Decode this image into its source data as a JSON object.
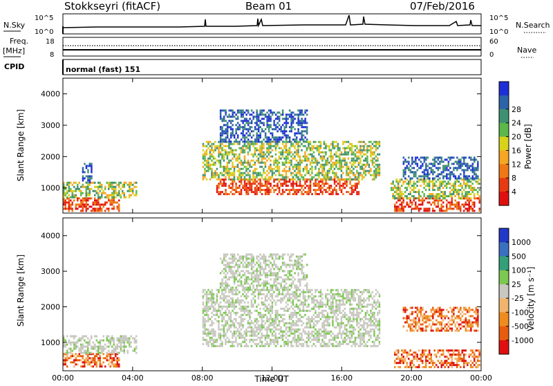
{
  "header": {
    "station": "Stokkseyri (fitACF)",
    "beam": "Beam 01",
    "date": "07/Feb/2016"
  },
  "left_labels": {
    "nsky": "N.Sky",
    "freq": "Freq.",
    "freq_unit": "[MHz]",
    "cpid": "CPID"
  },
  "right_labels": {
    "nsearch": "N.Search",
    "nave": "Nave"
  },
  "noise_panel": {
    "left_ticks": [
      "10^5",
      "10^0"
    ],
    "right_ticks": [
      "10^5",
      "10^0"
    ]
  },
  "freq_panel": {
    "left_ticks": [
      "18",
      "8"
    ],
    "right_ticks": [
      "60",
      "0"
    ]
  },
  "cpid_text": "normal (fast) 151",
  "chart_data": [
    {
      "type": "heatmap",
      "name": "power",
      "ylabel": "Slant Range [km]",
      "y_ticks": [
        "1000",
        "2000",
        "3000",
        "4000"
      ],
      "x_ticks": [
        "00:00",
        "04:00",
        "08:00",
        "12:00",
        "16:00",
        "20:00",
        "00:00"
      ],
      "colorbar": {
        "label": "Power [dB]",
        "ticks": [
          "4",
          "8",
          "12",
          "16",
          "20",
          "24",
          "28"
        ],
        "colors": [
          "#1f2fd8",
          "#2d63a8",
          "#3f8f73",
          "#5cb848",
          "#d8d21a",
          "#f6a623",
          "#f07814",
          "#e83a12",
          "#e01010"
        ]
      },
      "echo_regions": [
        {
          "t0": 0.0,
          "t1": 3.2,
          "r0": 300,
          "r1": 700,
          "level": "high"
        },
        {
          "t0": 0.0,
          "t1": 4.2,
          "r0": 700,
          "r1": 1200,
          "level": "mid"
        },
        {
          "t0": 1.1,
          "t1": 1.6,
          "r0": 1200,
          "r1": 1800,
          "level": "low"
        },
        {
          "t0": 8.8,
          "t1": 17.0,
          "r0": 800,
          "r1": 1300,
          "level": "high"
        },
        {
          "t0": 8.0,
          "t1": 18.2,
          "r0": 1300,
          "r1": 2500,
          "level": "mid"
        },
        {
          "t0": 9.0,
          "t1": 14.0,
          "r0": 2500,
          "r1": 3500,
          "level": "low"
        },
        {
          "t0": 19.0,
          "t1": 23.9,
          "r0": 300,
          "r1": 700,
          "level": "high"
        },
        {
          "t0": 18.8,
          "t1": 23.9,
          "r0": 700,
          "r1": 1300,
          "level": "mid"
        },
        {
          "t0": 19.5,
          "t1": 23.8,
          "r0": 1300,
          "r1": 2000,
          "level": "low"
        }
      ]
    },
    {
      "type": "heatmap",
      "name": "velocity",
      "ylabel": "Slant Range [km]",
      "x_label": "Time UT",
      "y_ticks": [
        "1000",
        "2000",
        "3000",
        "4000"
      ],
      "x_ticks": [
        "00:00",
        "04:00",
        "08:00",
        "12:00",
        "16:00",
        "20:00",
        "00:00"
      ],
      "colorbar": {
        "label": "Velocity [m s⁻¹]",
        "ticks": [
          "1000",
          "500",
          "100",
          "25",
          "-25",
          "-100",
          "-500",
          "-1000"
        ],
        "colors": [
          "#2238c8",
          "#3a70c0",
          "#34a07a",
          "#7cc850",
          "#c8c8c0",
          "#f0b46e",
          "#f08c1e",
          "#e85c10",
          "#e01010"
        ]
      },
      "echo_regions": [
        {
          "t0": 0.0,
          "t1": 3.2,
          "r0": 300,
          "r1": 700,
          "level": "neg"
        },
        {
          "t0": 0.0,
          "t1": 4.2,
          "r0": 700,
          "r1": 1200,
          "level": "zero"
        },
        {
          "t0": 8.0,
          "t1": 18.2,
          "r0": 900,
          "r1": 2500,
          "level": "zero"
        },
        {
          "t0": 9.0,
          "t1": 14.0,
          "r0": 2500,
          "r1": 3500,
          "level": "zero"
        },
        {
          "t0": 19.0,
          "t1": 23.9,
          "r0": 300,
          "r1": 800,
          "level": "neg"
        },
        {
          "t0": 19.5,
          "t1": 23.8,
          "r0": 1300,
          "r1": 2000,
          "level": "neg"
        }
      ]
    }
  ]
}
